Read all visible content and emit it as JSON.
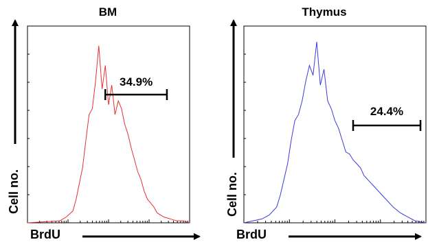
{
  "chart_data": [
    {
      "type": "line",
      "title": "BM",
      "xlabel": "BrdU",
      "ylabel": "Cell no.",
      "x_scale": "log",
      "color": "#e83030",
      "gate": {
        "label": "34.9%",
        "range": [
          0.48,
          0.86
        ]
      },
      "series": [
        {
          "x": [
            0.0,
            0.2,
            0.24,
            0.28,
            0.3,
            0.32,
            0.34,
            0.36,
            0.38,
            0.4,
            0.42,
            0.44,
            0.46,
            0.48,
            0.5,
            0.52,
            0.54,
            0.56,
            0.58,
            0.6,
            0.62,
            0.64,
            0.66,
            0.68,
            0.7,
            0.72,
            0.74,
            0.76,
            0.78,
            0.8,
            0.84,
            0.88,
            0.92,
            0.96,
            1.0
          ],
          "values": [
            0,
            1,
            3,
            6,
            12,
            20,
            28,
            42,
            55,
            58,
            72,
            90,
            68,
            80,
            60,
            70,
            55,
            62,
            58,
            50,
            45,
            38,
            32,
            26,
            22,
            16,
            12,
            10,
            8,
            5,
            3,
            2,
            1,
            1,
            0
          ]
        }
      ]
    },
    {
      "type": "line",
      "title": "Thymus",
      "xlabel": "BrdU",
      "ylabel": "Cell no.",
      "x_scale": "log",
      "color": "#3a3ae0",
      "gate": {
        "label": "24.4%",
        "range": [
          0.6,
          0.97
        ]
      },
      "series": [
        {
          "x": [
            0.0,
            0.05,
            0.1,
            0.14,
            0.18,
            0.2,
            0.22,
            0.24,
            0.26,
            0.28,
            0.3,
            0.32,
            0.34,
            0.36,
            0.38,
            0.4,
            0.42,
            0.44,
            0.46,
            0.48,
            0.5,
            0.52,
            0.54,
            0.56,
            0.58,
            0.6,
            0.62,
            0.64,
            0.66,
            0.68,
            0.7,
            0.74,
            0.78,
            0.82,
            0.86,
            0.9,
            0.94,
            1.0
          ],
          "values": [
            0,
            1,
            2,
            4,
            8,
            14,
            22,
            30,
            42,
            52,
            55,
            62,
            72,
            80,
            75,
            92,
            70,
            78,
            62,
            58,
            52,
            48,
            42,
            36,
            35,
            32,
            30,
            28,
            24,
            22,
            20,
            16,
            12,
            8,
            5,
            3,
            1,
            0
          ]
        }
      ]
    }
  ]
}
